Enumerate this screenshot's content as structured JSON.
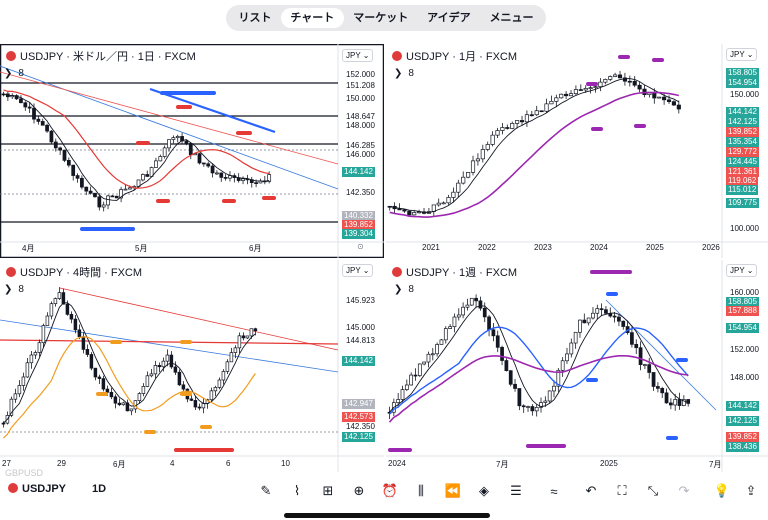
{
  "nav": {
    "tabs": [
      {
        "label": "リスト"
      },
      {
        "label": "チャート"
      },
      {
        "label": "マーケット"
      },
      {
        "label": "アイデア"
      },
      {
        "label": "メニュー"
      }
    ],
    "active": 1
  },
  "panels": [
    {
      "title": "USDJPY · 米ドル／円 · 1日 · FXCM",
      "currency": "JPY",
      "interval_count": "8",
      "price_labels": [
        {
          "text": "152.000",
          "style": "plain"
        },
        {
          "text": "151.208",
          "style": "plain"
        },
        {
          "text": "150.000",
          "style": "plain"
        },
        {
          "text": "148.647",
          "style": "plain"
        },
        {
          "text": "148.000",
          "style": "plain"
        },
        {
          "text": "146.285",
          "style": "plain"
        },
        {
          "text": "146.000",
          "style": "plain"
        },
        {
          "text": "144.142",
          "style": "tag",
          "color": "#26a69a"
        },
        {
          "text": "142.350",
          "style": "plain"
        },
        {
          "text": "140.332",
          "style": "tag",
          "color": "#b2b5be"
        },
        {
          "text": "139.852",
          "style": "tag",
          "color": "#ef5350"
        },
        {
          "text": "139.304",
          "style": "tag",
          "color": "#26a69a"
        }
      ],
      "x_labels": [
        "4月",
        "5月",
        "6月"
      ]
    },
    {
      "title": "USDJPY · 1月 · FXCM",
      "currency": "JPY",
      "interval_count": "8",
      "price_labels": [
        {
          "text": "158.805",
          "style": "tag",
          "color": "#26a69a"
        },
        {
          "text": "154.954",
          "style": "tag",
          "color": "#26a69a"
        },
        {
          "text": "150.000",
          "style": "plain"
        },
        {
          "text": "144.142",
          "style": "tag",
          "color": "#26a69a"
        },
        {
          "text": "142.125",
          "style": "tag",
          "color": "#26a69a"
        },
        {
          "text": "139.852",
          "style": "tag",
          "color": "#ef5350"
        },
        {
          "text": "135.354",
          "style": "tag",
          "color": "#26a69a"
        },
        {
          "text": "129.772",
          "style": "tag",
          "color": "#ef5350"
        },
        {
          "text": "124.445",
          "style": "tag",
          "color": "#26a69a"
        },
        {
          "text": "121.361",
          "style": "tag",
          "color": "#ef5350"
        },
        {
          "text": "119.062",
          "style": "tag",
          "color": "#ef5350"
        },
        {
          "text": "115.012",
          "style": "tag",
          "color": "#26a69a"
        },
        {
          "text": "109.775",
          "style": "tag",
          "color": "#26a69a"
        },
        {
          "text": "100.000",
          "style": "plain"
        }
      ],
      "x_labels": [
        "2021",
        "2022",
        "2023",
        "2024",
        "2025",
        "2026"
      ]
    },
    {
      "title": "USDJPY · 4時間 · FXCM",
      "currency": "JPY",
      "interval_count": "8",
      "price_labels": [
        {
          "text": "145.923",
          "style": "plain"
        },
        {
          "text": "145.000",
          "style": "plain"
        },
        {
          "text": "144.813",
          "style": "plain"
        },
        {
          "text": "144.142",
          "style": "tag",
          "color": "#26a69a"
        },
        {
          "text": "142.947",
          "style": "tag",
          "color": "#b2b5be"
        },
        {
          "text": "142.573",
          "style": "tag",
          "color": "#ef5350"
        },
        {
          "text": "142.350",
          "style": "plain"
        },
        {
          "text": "142.125",
          "style": "tag",
          "color": "#26a69a"
        }
      ],
      "x_labels": [
        "27",
        "29",
        "6月",
        "4",
        "6",
        "10"
      ]
    },
    {
      "title": "USDJPY · 1週 · FXCM",
      "currency": "JPY",
      "interval_count": "8",
      "price_labels": [
        {
          "text": "160.000",
          "style": "plain"
        },
        {
          "text": "158.805",
          "style": "tag",
          "color": "#26a69a"
        },
        {
          "text": "157.888",
          "style": "tag",
          "color": "#ef5350"
        },
        {
          "text": "154.954",
          "style": "tag",
          "color": "#26a69a"
        },
        {
          "text": "152.000",
          "style": "plain"
        },
        {
          "text": "148.000",
          "style": "plain"
        },
        {
          "text": "144.142",
          "style": "tag",
          "color": "#26a69a"
        },
        {
          "text": "142.125",
          "style": "tag",
          "color": "#26a69a"
        },
        {
          "text": "139.852",
          "style": "tag",
          "color": "#ef5350"
        },
        {
          "text": "138.436",
          "style": "tag",
          "color": "#26a69a"
        }
      ],
      "x_labels": [
        "2024",
        "7月",
        "2025",
        "7月"
      ]
    }
  ],
  "bottombar": {
    "symbol": "USDJPY",
    "timeframe": "1D",
    "tools": [
      {
        "icon": "pencil-icon",
        "glyph": "✎"
      },
      {
        "icon": "indicators-icon",
        "glyph": "⌇"
      },
      {
        "icon": "layout-grid-icon",
        "glyph": "⊞"
      },
      {
        "icon": "add-icon",
        "glyph": "⊕"
      },
      {
        "icon": "alarm-icon",
        "glyph": "⏰"
      },
      {
        "icon": "candles-icon",
        "glyph": "⫼"
      },
      {
        "icon": "rewind-icon",
        "glyph": "⏪"
      },
      {
        "icon": "layers-icon",
        "glyph": "◈"
      },
      {
        "icon": "settings-sliders-icon",
        "glyph": "☰"
      },
      {
        "icon": "wave-icon",
        "glyph": "≈"
      },
      {
        "icon": "undo-icon",
        "glyph": "↶"
      },
      {
        "icon": "fullscreen-icon",
        "glyph": "⛶"
      },
      {
        "icon": "shrink-icon",
        "glyph": "⤡"
      },
      {
        "icon": "redo-icon",
        "glyph": "↷"
      },
      {
        "icon": "bulb-icon",
        "glyph": "💡"
      },
      {
        "icon": "share-icon",
        "glyph": "⇪"
      }
    ]
  }
}
